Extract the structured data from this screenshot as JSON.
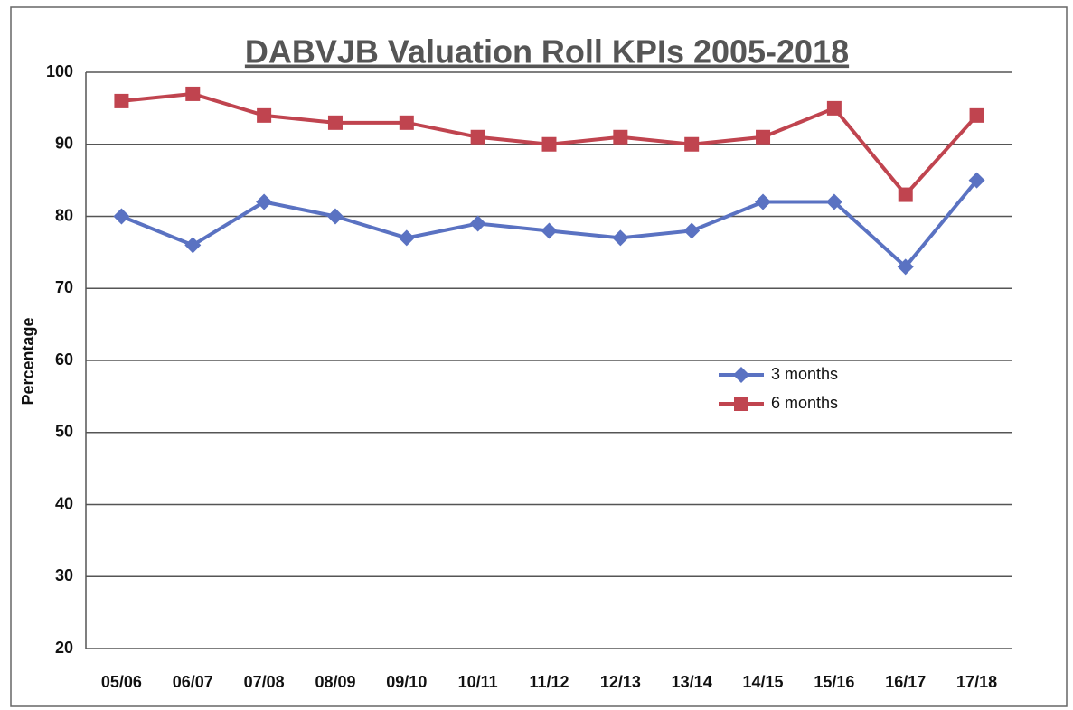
{
  "chart_data": {
    "type": "line",
    "title": "DABVJB Valuation Roll KPIs 2005-2018",
    "y_label": "Percentage",
    "categories": [
      "05/06",
      "06/07",
      "07/08",
      "08/09",
      "09/10",
      "10/11",
      "11/12",
      "12/13",
      "13/14",
      "14/15",
      "15/16",
      "16/17",
      "17/18"
    ],
    "series": [
      {
        "name": "3 months",
        "color": "#5a72c2",
        "marker": "diamond",
        "values": [
          80,
          76,
          82,
          80,
          77,
          79,
          78,
          77,
          78,
          82,
          82,
          73,
          85
        ]
      },
      {
        "name": "6 months",
        "color": "#c0444f",
        "marker": "square",
        "values": [
          96,
          97,
          94,
          93,
          93,
          91,
          90,
          91,
          90,
          91,
          95,
          83,
          94
        ]
      }
    ],
    "ylim": [
      20,
      100
    ],
    "yticks": [
      20,
      30,
      40,
      50,
      60,
      70,
      80,
      90,
      100
    ],
    "grid": true,
    "legend": "center-right"
  }
}
